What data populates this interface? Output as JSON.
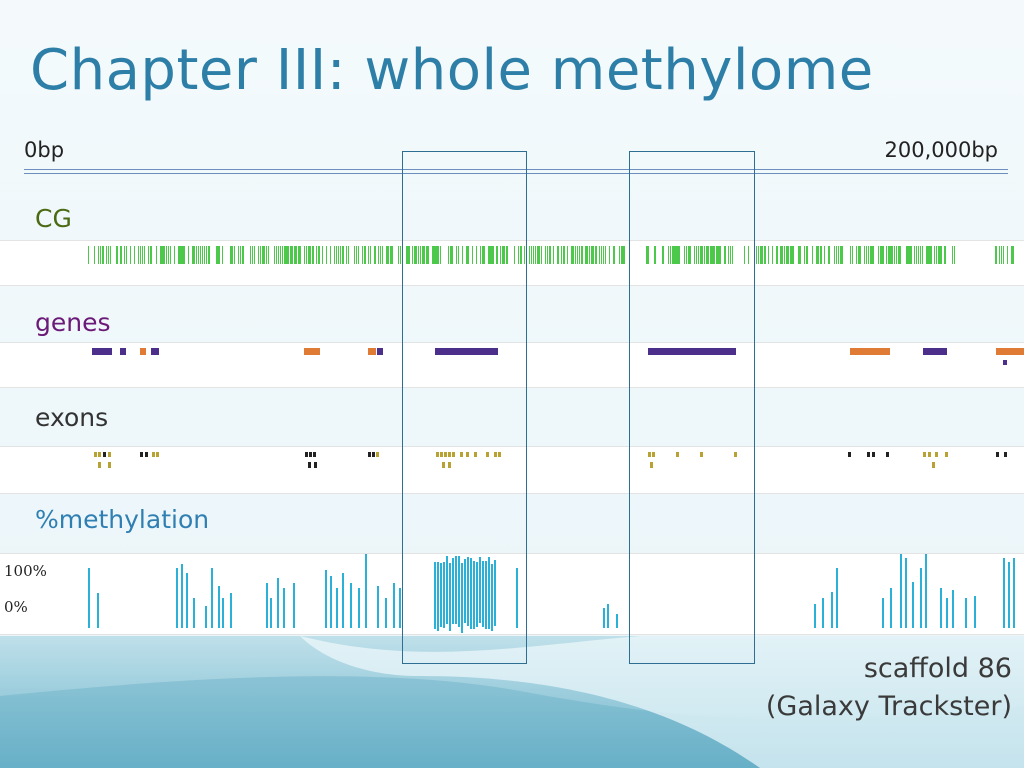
{
  "slide": {
    "title": "Chapter III: whole methylome",
    "axis": {
      "start": "0bp",
      "end": "200,000bp"
    },
    "tracks": {
      "cg": "CG",
      "genes": "genes",
      "exons": "exons",
      "methylation": "%methylation"
    },
    "methylation_scale": {
      "max": "100%",
      "min": "0%"
    },
    "footer": {
      "line1": "scaffold 86",
      "line2": "(Galaxy Trackster)"
    },
    "colors": {
      "title": "#2e7fa8",
      "cg_label": "#4a6a14",
      "genes_label": "#6b1a77",
      "methylation_label": "#2f7fb3",
      "cg_mark": "#4cc94a",
      "gene_purple": "#4c2f8a",
      "gene_orange": "#e07b35",
      "exon_olive": "#b7a233",
      "exon_black": "#222222",
      "methylation_bar": "#2bb0d8",
      "highlight_box": "#2f6e93"
    }
  }
}
